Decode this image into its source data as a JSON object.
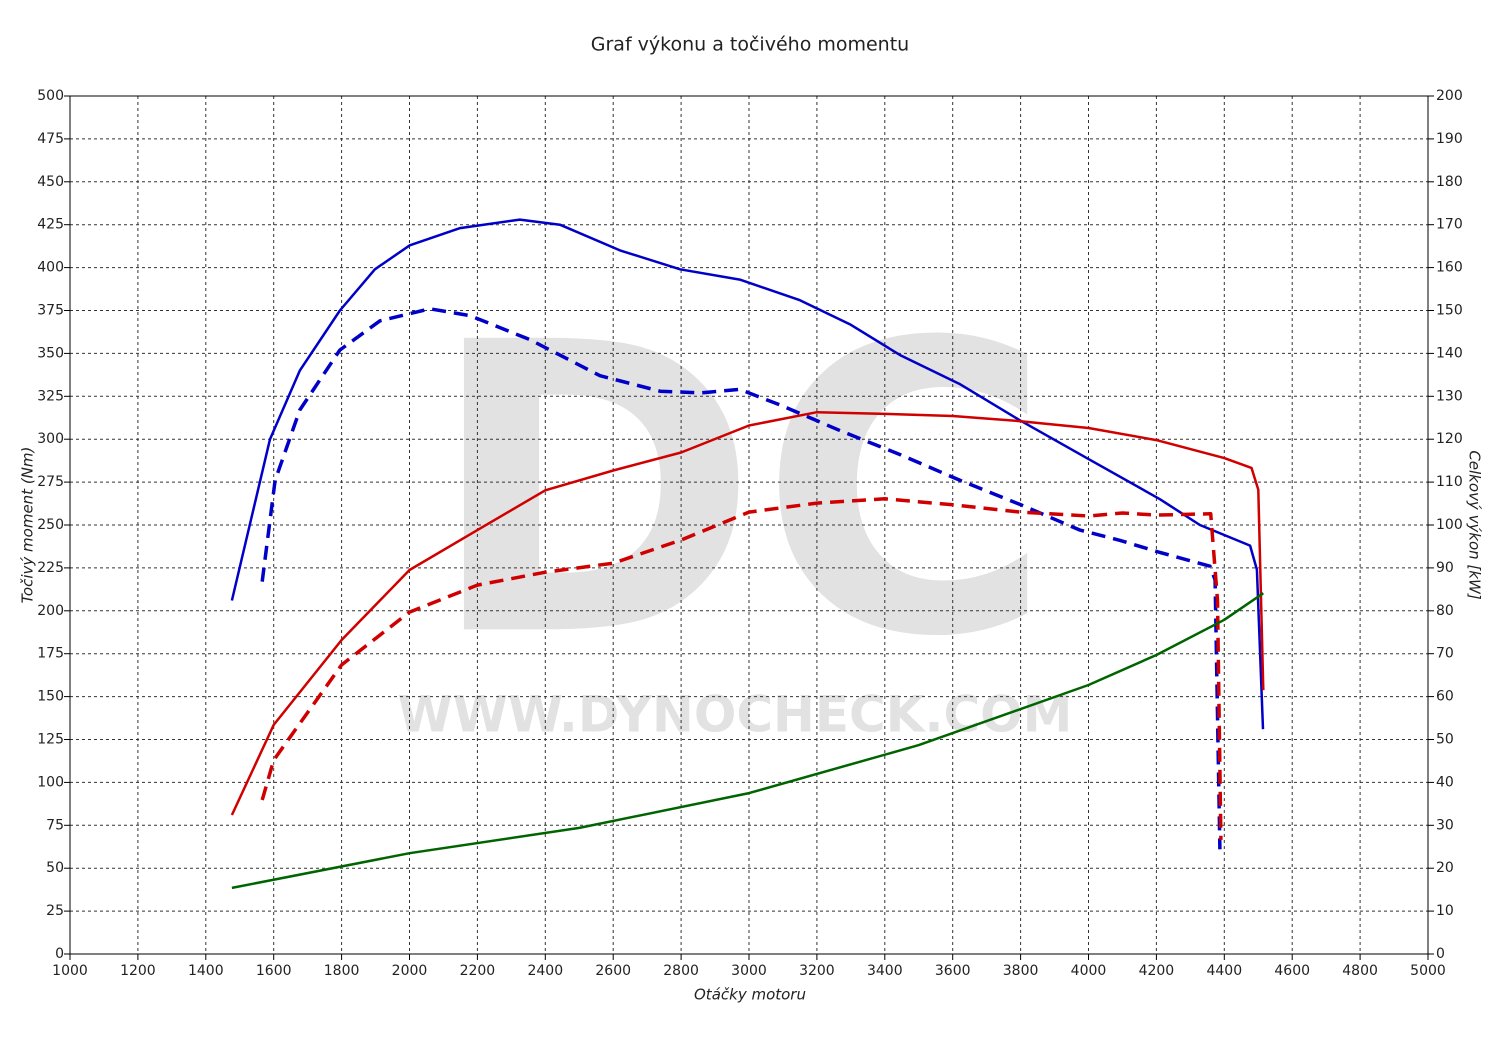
{
  "chart_data": {
    "type": "line",
    "title": "Graf výkonu a točivého momentu",
    "xlabel": "Otáčky motoru",
    "ylabel": "Točivý moment (Nm)",
    "y2label": "Celkový výkon [kW]",
    "watermark": "DC",
    "watermark_url": "WWW.DYNOCHECK.COM",
    "xlim": [
      1000,
      5000
    ],
    "xticks": [
      1000,
      1200,
      1400,
      1600,
      1800,
      2000,
      2200,
      2400,
      2600,
      2800,
      3000,
      3200,
      3400,
      3600,
      3800,
      4000,
      4200,
      4400,
      4600,
      4800,
      5000
    ],
    "ylim": [
      0,
      500
    ],
    "yticks": [
      0,
      25,
      50,
      75,
      100,
      125,
      150,
      175,
      200,
      225,
      250,
      275,
      300,
      325,
      350,
      375,
      400,
      425,
      450,
      475,
      500
    ],
    "y2lim": [
      0,
      200
    ],
    "y2ticks": [
      0,
      10,
      20,
      30,
      40,
      50,
      60,
      70,
      80,
      90,
      100,
      110,
      120,
      130,
      140,
      150,
      160,
      170,
      180,
      190,
      200
    ],
    "grid": true,
    "series": [
      {
        "color": "#0000c8",
        "dash": false,
        "x": [
          1477,
          1589,
          1677,
          1795,
          1898,
          2001,
          2149,
          2325,
          2443,
          2620,
          2797,
          2973,
          3150,
          3297,
          3445,
          3622,
          3798,
          4004,
          4211,
          4328,
          4476,
          4496,
          4514
        ],
        "values": [
          206,
          300,
          340,
          375,
          399,
          413,
          423,
          428,
          425,
          410,
          399,
          393,
          381,
          367,
          349,
          332,
          311,
          288,
          265,
          250,
          238,
          224,
          131
        ]
      },
      {
        "color": "#0000c8",
        "dash": true,
        "x": [
          1566,
          1604,
          1677,
          1795,
          1913,
          2060,
          2178,
          2355,
          2561,
          2738,
          2856,
          2973,
          3091,
          3268,
          3445,
          3622,
          3798,
          3975,
          4093,
          4211,
          4358,
          4373,
          4387
        ],
        "values": [
          217,
          276,
          317,
          352,
          369,
          376,
          372,
          358,
          337,
          328,
          327,
          329,
          320,
          305,
          291,
          276,
          262,
          247,
          241,
          234,
          226,
          218,
          61
        ]
      },
      {
        "color": "#d00000",
        "dash": false,
        "axis": "y2",
        "x": [
          1477,
          1600,
          1800,
          2000,
          2200,
          2400,
          2600,
          2800,
          3000,
          3200,
          3400,
          3600,
          3800,
          4000,
          4200,
          4400,
          4480,
          4500,
          4515
        ],
        "values": [
          32.4,
          53.4,
          73.2,
          89.5,
          98.8,
          108.1,
          112.7,
          116.9,
          123.2,
          126.3,
          125.9,
          125.4,
          124.2,
          122.6,
          119.8,
          115.6,
          113.3,
          108.2,
          61.5
        ]
      },
      {
        "color": "#d00000",
        "dash": true,
        "axis": "y2",
        "x": [
          1566,
          1600,
          1800,
          2000,
          2200,
          2400,
          2600,
          2800,
          3000,
          3200,
          3400,
          3600,
          3800,
          4000,
          4100,
          4200,
          4360,
          4380,
          4390
        ],
        "values": [
          35.9,
          45.2,
          67.4,
          79.7,
          86,
          89,
          91.1,
          96.5,
          103,
          105.1,
          106.1,
          104.7,
          103,
          102.1,
          102.8,
          102.3,
          102.6,
          82.5,
          26.6
        ]
      },
      {
        "color": "#006400",
        "dash": false,
        "axis": "y2",
        "x": [
          1477,
          2000,
          2500,
          3000,
          3500,
          4000,
          4200,
          4400,
          4515
        ],
        "values": [
          15.4,
          23.5,
          29.4,
          37.5,
          48.7,
          62.7,
          69.7,
          77.9,
          84.1
        ]
      }
    ]
  }
}
